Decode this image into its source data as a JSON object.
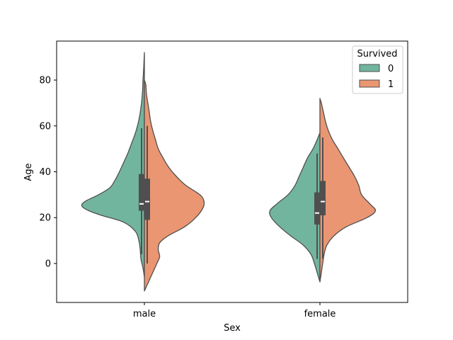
{
  "chart_data": {
    "type": "violin",
    "split": true,
    "xlabel": "Sex",
    "ylabel": "Age",
    "categories": [
      "male",
      "female"
    ],
    "ylim": [
      -17,
      97
    ],
    "yticks": [
      0,
      20,
      40,
      60,
      80
    ],
    "grid": false,
    "legend": {
      "title": "Survived",
      "placement": "top-right",
      "entries": [
        {
          "label": "0",
          "color": "#72b59e"
        },
        {
          "label": "1",
          "color": "#ea9673"
        }
      ]
    },
    "colors": {
      "0": "#72b59e",
      "1": "#ea9673",
      "edge": "#4f4f4f"
    },
    "groups": [
      {
        "category": "male",
        "left": {
          "series": "0",
          "profile": [
            [
              -6,
              0
            ],
            [
              -2,
              0.02
            ],
            [
              2,
              0.05
            ],
            [
              6,
              0.06
            ],
            [
              10,
              0.08
            ],
            [
              14,
              0.13
            ],
            [
              18,
              0.3
            ],
            [
              21,
              0.62
            ],
            [
              23,
              0.8
            ],
            [
              25,
              0.9
            ],
            [
              27,
              0.86
            ],
            [
              30,
              0.66
            ],
            [
              33,
              0.5
            ],
            [
              36,
              0.43
            ],
            [
              40,
              0.36
            ],
            [
              44,
              0.3
            ],
            [
              48,
              0.24
            ],
            [
              52,
              0.19
            ],
            [
              56,
              0.14
            ],
            [
              60,
              0.1
            ],
            [
              64,
              0.07
            ],
            [
              68,
              0.05
            ],
            [
              72,
              0.035
            ],
            [
              76,
              0.025
            ],
            [
              80,
              0.02
            ],
            [
              84,
              0.012
            ],
            [
              88,
              0.006
            ],
            [
              92,
              0
            ]
          ],
          "box": {
            "q1": 23,
            "median": 26,
            "q3": 39,
            "whisker_low": 4,
            "whisker_high": 59
          }
        },
        "right": {
          "series": "1",
          "profile": [
            [
              -12,
              0
            ],
            [
              -8,
              0.06
            ],
            [
              -4,
              0.12
            ],
            [
              0,
              0.18
            ],
            [
              3,
              0.22
            ],
            [
              6,
              0.2
            ],
            [
              9,
              0.22
            ],
            [
              12,
              0.34
            ],
            [
              16,
              0.58
            ],
            [
              20,
              0.74
            ],
            [
              24,
              0.84
            ],
            [
              27,
              0.86
            ],
            [
              30,
              0.8
            ],
            [
              34,
              0.6
            ],
            [
              38,
              0.46
            ],
            [
              42,
              0.35
            ],
            [
              46,
              0.27
            ],
            [
              50,
              0.2
            ],
            [
              54,
              0.16
            ],
            [
              58,
              0.12
            ],
            [
              62,
              0.09
            ],
            [
              66,
              0.07
            ],
            [
              70,
              0.05
            ],
            [
              74,
              0.03
            ],
            [
              78,
              0.02
            ],
            [
              80,
              0
            ]
          ],
          "box": {
            "q1": 19,
            "median": 27,
            "q3": 37,
            "whisker_low": 0,
            "whisker_high": 60
          }
        }
      },
      {
        "category": "female",
        "left": {
          "series": "0",
          "profile": [
            [
              -8,
              0
            ],
            [
              -4,
              0.04
            ],
            [
              0,
              0.08
            ],
            [
              4,
              0.13
            ],
            [
              8,
              0.24
            ],
            [
              12,
              0.42
            ],
            [
              16,
              0.58
            ],
            [
              20,
              0.7
            ],
            [
              23,
              0.72
            ],
            [
              26,
              0.62
            ],
            [
              30,
              0.46
            ],
            [
              34,
              0.36
            ],
            [
              38,
              0.3
            ],
            [
              42,
              0.24
            ],
            [
              46,
              0.18
            ],
            [
              50,
              0.1
            ],
            [
              54,
              0.04
            ],
            [
              57,
              0
            ]
          ],
          "box": {
            "q1": 17,
            "median": 22,
            "q3": 31,
            "whisker_low": 2,
            "whisker_high": 48
          }
        },
        "right": {
          "series": "1",
          "profile": [
            [
              -8,
              0
            ],
            [
              -4,
              0.02
            ],
            [
              0,
              0.04
            ],
            [
              4,
              0.06
            ],
            [
              8,
              0.1
            ],
            [
              12,
              0.2
            ],
            [
              16,
              0.38
            ],
            [
              20,
              0.68
            ],
            [
              23,
              0.8
            ],
            [
              26,
              0.72
            ],
            [
              30,
              0.6
            ],
            [
              34,
              0.56
            ],
            [
              38,
              0.5
            ],
            [
              42,
              0.42
            ],
            [
              46,
              0.34
            ],
            [
              50,
              0.26
            ],
            [
              54,
              0.18
            ],
            [
              58,
              0.12
            ],
            [
              62,
              0.08
            ],
            [
              66,
              0.05
            ],
            [
              70,
              0.02
            ],
            [
              72,
              0
            ]
          ],
          "box": {
            "q1": 21,
            "median": 27,
            "q3": 36,
            "whisker_low": 2,
            "whisker_high": 55
          }
        }
      }
    ]
  }
}
